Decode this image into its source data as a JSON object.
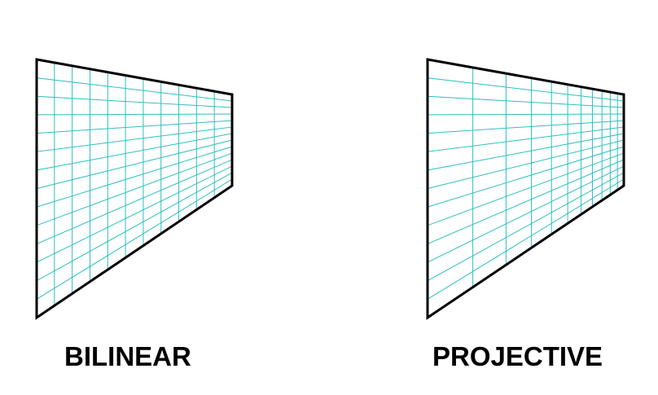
{
  "panels": [
    {
      "label": "BILINEAR",
      "method": "bilinear",
      "grid_divisions": {
        "u": 11,
        "v": 14
      },
      "depth_weight_far_edge": 1.0
    },
    {
      "label": "PROJECTIVE",
      "method": "projective",
      "grid_divisions": {
        "u": 11,
        "v": 14
      },
      "depth_weight_far_edge": 3.0
    }
  ],
  "colors": {
    "grid": "#2ebfbf",
    "outline": "#000000",
    "background": "#ffffff"
  }
}
